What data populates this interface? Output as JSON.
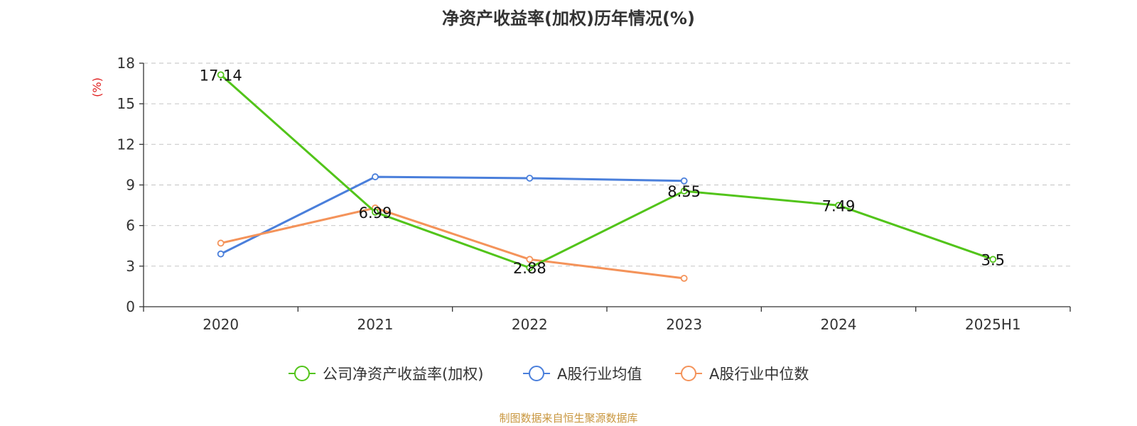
{
  "chart_data": {
    "type": "line",
    "title": "净资产收益率(加权)历年情况(%)",
    "ylabel": "(%)",
    "xlabel": "",
    "categories": [
      "2020",
      "2021",
      "2022",
      "2023",
      "2024",
      "2025H1"
    ],
    "ylim": [
      0,
      18
    ],
    "yticks": [
      0,
      3,
      6,
      9,
      12,
      15,
      18
    ],
    "grid": true,
    "legend_position": "bottom",
    "series": [
      {
        "name": "公司净资产收益率(加权)",
        "color": "#52c41a",
        "values": [
          17.14,
          6.99,
          2.88,
          8.55,
          7.49,
          3.5
        ],
        "data_labels": [
          "17.14",
          "6.99",
          "2.88",
          "8.55",
          "7.49",
          "3.5"
        ]
      },
      {
        "name": "A股行业均值",
        "color": "#4a7fdb",
        "values": [
          3.9,
          9.6,
          9.5,
          9.3,
          null,
          null
        ]
      },
      {
        "name": "A股行业中位数",
        "color": "#f4935a",
        "values": [
          4.7,
          7.3,
          3.5,
          2.1,
          null,
          null
        ]
      }
    ]
  },
  "source_note": "制图数据来自恒生聚源数据库",
  "colors": {
    "ylabel": "#e02020",
    "grid": "#cccccc",
    "axis": "#333333"
  }
}
